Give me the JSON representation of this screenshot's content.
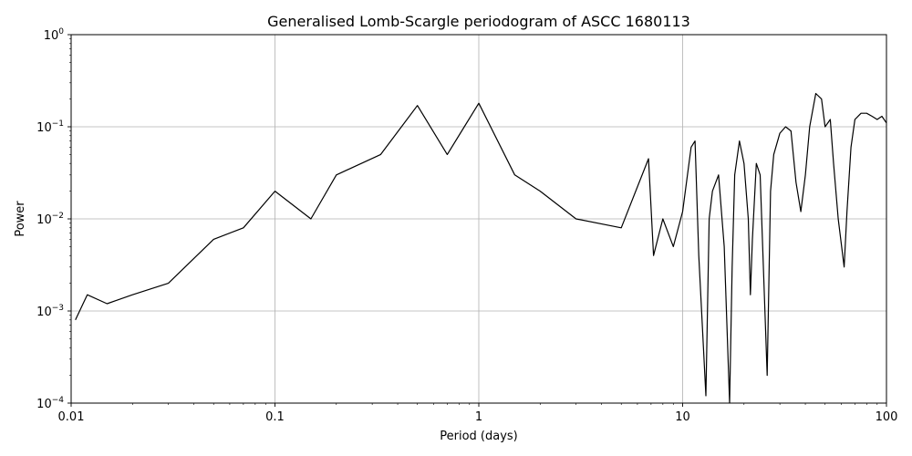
{
  "chart_data": {
    "type": "line",
    "title": "Generalised Lomb-Scargle periodogram of ASCC 1680113",
    "xlabel": "Period (days)",
    "ylabel": "Power",
    "xscale": "log",
    "yscale": "log",
    "xlim": [
      0.01,
      100
    ],
    "ylim": [
      0.0001,
      1
    ],
    "grid": true,
    "line_color": "#000000",
    "x_ticks": [
      {
        "value": 0.01,
        "label": "0.01"
      },
      {
        "value": 0.1,
        "label": "0.1"
      },
      {
        "value": 1,
        "label": "1"
      },
      {
        "value": 10,
        "label": "10"
      },
      {
        "value": 100,
        "label": "100"
      }
    ],
    "y_ticks": [
      {
        "value": 0.0001,
        "base": "10",
        "exp": "−4"
      },
      {
        "value": 0.001,
        "base": "10",
        "exp": "−3"
      },
      {
        "value": 0.01,
        "base": "10",
        "exp": "−2"
      },
      {
        "value": 0.1,
        "base": "10",
        "exp": "−1"
      },
      {
        "value": 1,
        "base": "10",
        "exp": "0"
      }
    ],
    "series": [
      {
        "x": [
          0.0105,
          0.012,
          0.015,
          0.02,
          0.03,
          0.05,
          0.07,
          0.1,
          0.15,
          0.2,
          0.33,
          0.5,
          0.7,
          1.0,
          1.5,
          2.0,
          3.0,
          5.0,
          6.8,
          7.2,
          8.0,
          9.0,
          10.0,
          11.0,
          11.5,
          12.0,
          13.0,
          13.5,
          14.0,
          15.0,
          16.0,
          17.0,
          17.5,
          18.0,
          19.0,
          20.0,
          21.0,
          21.5,
          22.0,
          23.0,
          24.0,
          26.0,
          27.0,
          28.0,
          30.0,
          32.0,
          34.0,
          36.0,
          38.0,
          40.0,
          42.0,
          45.0,
          48.0,
          50.0,
          53.0,
          55.0,
          58.0,
          62.0,
          64.0,
          67.0,
          70.0,
          75.0,
          80.0,
          85.0,
          90.0,
          95.0,
          100.0
        ],
        "y": [
          0.0008,
          0.0015,
          0.0012,
          0.0015,
          0.002,
          0.006,
          0.008,
          0.02,
          0.01,
          0.03,
          0.05,
          0.17,
          0.05,
          0.18,
          0.03,
          0.02,
          0.01,
          0.008,
          0.045,
          0.004,
          0.01,
          0.005,
          0.012,
          0.06,
          0.07,
          0.004,
          0.00012,
          0.01,
          0.02,
          0.03,
          0.005,
          0.0001,
          0.003,
          0.03,
          0.07,
          0.04,
          0.01,
          0.0015,
          0.006,
          0.04,
          0.03,
          0.0002,
          0.02,
          0.05,
          0.085,
          0.1,
          0.09,
          0.025,
          0.012,
          0.03,
          0.1,
          0.23,
          0.2,
          0.1,
          0.12,
          0.04,
          0.01,
          0.003,
          0.012,
          0.06,
          0.12,
          0.14,
          0.14,
          0.13,
          0.12,
          0.13,
          0.11
        ]
      }
    ]
  }
}
